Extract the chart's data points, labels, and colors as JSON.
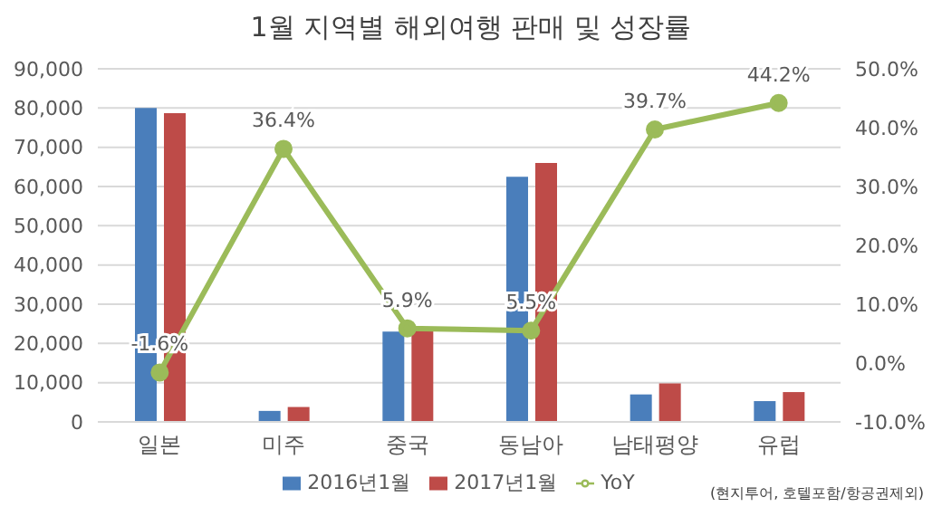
{
  "chart_data": {
    "type": "bar",
    "title": "1월 지역별 해외여행 판매 및 성장률",
    "categories": [
      "일본",
      "미주",
      "중국",
      "동남아",
      "남태평양",
      "유럽"
    ],
    "series": [
      {
        "name": "2016년1월",
        "color": "#4a7ebb",
        "values": [
          80000,
          2800,
          23000,
          62500,
          7000,
          5300
        ]
      },
      {
        "name": "2017년1월",
        "color": "#be4b48",
        "values": [
          78700,
          3800,
          24000,
          66000,
          9800,
          7600
        ]
      },
      {
        "name": "YoY",
        "type": "line",
        "axis": "y2",
        "color": "#9bbb59",
        "marker": "circle",
        "values": [
          -1.6,
          36.4,
          5.9,
          5.5,
          39.7,
          44.2
        ],
        "value_labels": [
          "-1.6%",
          "36.4%",
          "5.9%",
          "5.5%",
          "39.7%",
          "44.2%"
        ]
      }
    ],
    "ylim": [
      0,
      90000
    ],
    "yticks": [
      0,
      {
        "value": 10000,
        "label": "10,000"
      },
      {
        "value": 20000,
        "label": "20,000"
      },
      {
        "value": 30000,
        "label": "30,000"
      },
      {
        "value": 40000,
        "label": "40,000"
      },
      {
        "value": 50000,
        "label": "50,000"
      },
      {
        "value": 60000,
        "label": "60,000"
      },
      {
        "value": 70000,
        "label": "70,000"
      },
      {
        "value": 80000,
        "label": "80,000"
      },
      {
        "value": 90000,
        "label": "90,000"
      }
    ],
    "y2lim": [
      -10,
      50
    ],
    "y2ticks": [
      {
        "value": -10,
        "label": "-10.0%"
      },
      {
        "value": 0,
        "label": "0.0%"
      },
      {
        "value": 10,
        "label": "10.0%"
      },
      {
        "value": 20,
        "label": "20.0%"
      },
      {
        "value": 30,
        "label": "30.0%"
      },
      {
        "value": 40,
        "label": "40.0%"
      },
      {
        "value": 50,
        "label": "50.0%"
      }
    ],
    "grid": "y",
    "legend": "bottom",
    "annotations": [
      "(현지투어, 호텔포함/항공권제외)"
    ]
  }
}
